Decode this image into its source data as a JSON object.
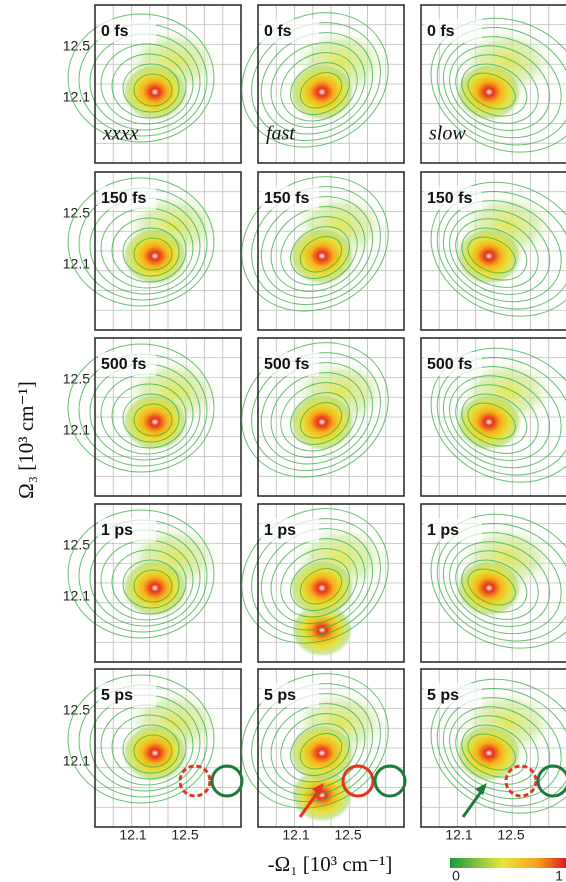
{
  "figure": {
    "y_label": "Ω₃ [10³ cm⁻¹]",
    "x_label": "-Ω₁ [10³ cm⁻¹]",
    "columns": [
      "xxxx",
      "fast",
      "slow"
    ],
    "rows": [
      {
        "time": "0 fs"
      },
      {
        "time": "150 fs"
      },
      {
        "time": "500 fs"
      },
      {
        "time": "1 ps"
      },
      {
        "time": "5 ps"
      }
    ],
    "y_ticks": [
      "12.5",
      "12.1"
    ],
    "x_ticks": [
      "12.1",
      "12.5"
    ],
    "colorbar": {
      "min_label": "0",
      "max_label": "1"
    }
  }
}
